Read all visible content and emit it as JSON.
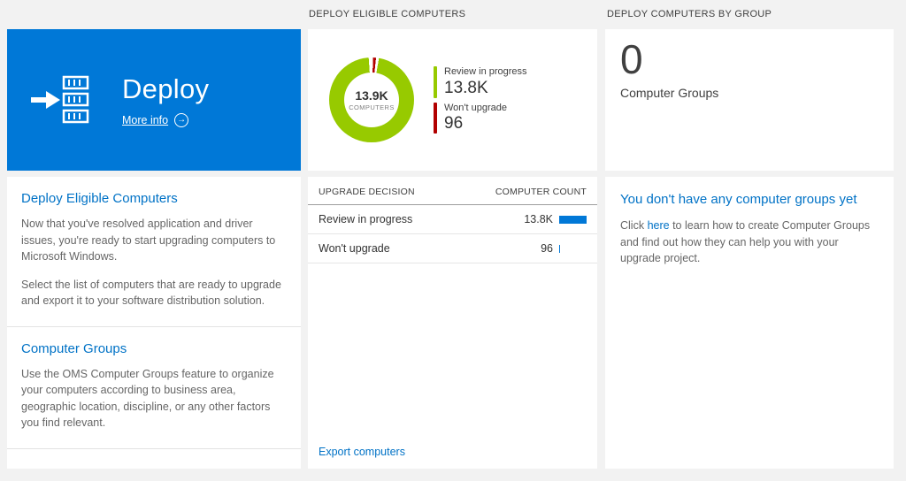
{
  "headers": {
    "middle": "DEPLOY ELIGIBLE COMPUTERS",
    "right": "DEPLOY COMPUTERS BY GROUP"
  },
  "hero": {
    "title": "Deploy",
    "more_info_label": "More info",
    "arrow_icon": "→",
    "bg_color": "#0078d7"
  },
  "left_panel": {
    "sections": [
      {
        "heading": "Deploy Eligible Computers",
        "paragraphs": [
          "Now that you've resolved application and driver issues, you're ready to start upgrading computers to Microsoft Windows.",
          "Select the list of computers that are ready to upgrade and export it to your software distribution solution."
        ]
      },
      {
        "heading": "Computer Groups",
        "paragraphs": [
          "Use the OMS Computer Groups feature to organize your computers according to business area, geographic location, discipline, or any other factors you find relevant."
        ]
      }
    ]
  },
  "chart_data": {
    "type": "pie",
    "title": "DEPLOY ELIGIBLE COMPUTERS",
    "center_value": "13.9K",
    "center_label": "COMPUTERS",
    "segments": [
      {
        "label": "Review in progress",
        "value": 13800,
        "display": "13.8K",
        "color": "#97ca00"
      },
      {
        "label": "Won't upgrade",
        "value": 96,
        "display": "96",
        "color": "#b20000"
      }
    ],
    "legend_position": "right"
  },
  "table": {
    "headers": [
      "UPGRADE DECISION",
      "COMPUTER COUNT"
    ],
    "rows": [
      {
        "label": "Review in progress",
        "value": "13.8K",
        "bar_pct": 100
      },
      {
        "label": "Won't upgrade",
        "value": "96",
        "bar_pct": 3
      }
    ],
    "bar_color": "#0078d7",
    "export_label": "Export computers"
  },
  "groups_tile": {
    "count": "0",
    "label": "Computer Groups"
  },
  "groups_panel": {
    "heading": "You don't have any computer groups yet",
    "text_before": "Click ",
    "link_label": "here",
    "text_after": " to learn how to create Computer Groups and find out how they can help you with your upgrade project."
  }
}
